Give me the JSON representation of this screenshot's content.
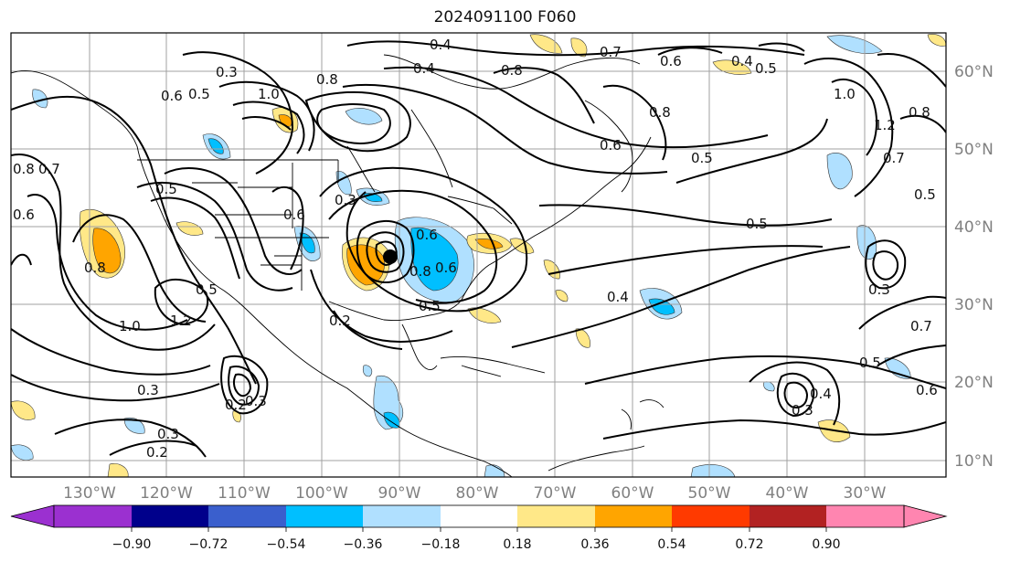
{
  "title": "2024091100 F060",
  "map": {
    "lon_labels": [
      "130°W",
      "120°W",
      "110°W",
      "100°W",
      "90°W",
      "80°W",
      "70°W",
      "60°W",
      "50°W",
      "40°W",
      "30°W"
    ],
    "lat_labels": [
      "60°N",
      "50°N",
      "40°N",
      "30°N",
      "20°N",
      "10°N"
    ],
    "contour_labels": [
      {
        "text": "0.3"
      },
      {
        "text": "0.8"
      },
      {
        "text": "0.4"
      },
      {
        "text": "0.8"
      },
      {
        "text": "0.7"
      },
      {
        "text": "0.6"
      },
      {
        "text": "0.4"
      },
      {
        "text": "0.5"
      },
      {
        "text": "0.6"
      },
      {
        "text": "0.5"
      },
      {
        "text": "1.0"
      },
      {
        "text": "0.8"
      },
      {
        "text": "0.6"
      },
      {
        "text": "0.5"
      },
      {
        "text": "1.0"
      },
      {
        "text": "1.2"
      },
      {
        "text": "0.8"
      },
      {
        "text": "0.7"
      },
      {
        "text": "0.5"
      },
      {
        "text": "0.5"
      },
      {
        "text": "0.8"
      },
      {
        "text": "0.7"
      },
      {
        "text": "0.6"
      },
      {
        "text": "0.5"
      },
      {
        "text": "0.3"
      },
      {
        "text": "0.6"
      },
      {
        "text": "0.8"
      },
      {
        "text": "1.0"
      },
      {
        "text": "1.2"
      },
      {
        "text": "0.5"
      },
      {
        "text": "0.3"
      },
      {
        "text": "0.2"
      },
      {
        "text": "0.6"
      },
      {
        "text": "0.8"
      },
      {
        "text": "0.5"
      },
      {
        "text": "0.6"
      },
      {
        "text": "0.2"
      },
      {
        "text": "0.3"
      },
      {
        "text": "0.3"
      },
      {
        "text": "0.2"
      },
      {
        "text": "0.4"
      },
      {
        "text": "0.3"
      },
      {
        "text": "0.7"
      },
      {
        "text": "0.5"
      },
      {
        "text": "0.6"
      },
      {
        "text": "0.3"
      },
      {
        "text": "0.4"
      },
      {
        "text": "0.4"
      }
    ]
  },
  "colorbar": {
    "ticks": [
      "−0.90",
      "−0.72",
      "−0.54",
      "−0.36",
      "−0.18",
      "0.18",
      "0.36",
      "0.54",
      "0.72",
      "0.90"
    ],
    "colors": [
      "#9b30d0",
      "#00008b",
      "#3a5fcd",
      "#00bfff",
      "#b0e0ff",
      "#ffffff",
      "#ffe888",
      "#ffa500",
      "#ff3a00",
      "#b22222",
      "#ff85b0"
    ]
  }
}
